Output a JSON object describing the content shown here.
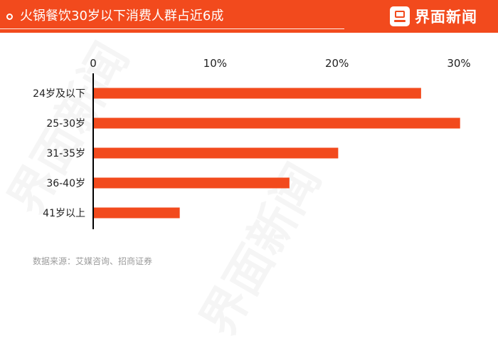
{
  "header": {
    "title": "火锅餐饮30岁以下消费人群占近6成",
    "brand_name": "界面新闻",
    "brand_logo_icon": "jiemian-logo-icon"
  },
  "colors": {
    "accent": "#f24a1d",
    "bar": "#f24a1d",
    "axis": "#000000",
    "source_text": "#9b9b9b"
  },
  "chart_data": {
    "type": "bar",
    "orientation": "horizontal",
    "title": "火锅餐饮30岁以下消费人群占近6成",
    "categories": [
      "24岁及以下",
      "25-30岁",
      "31-35岁",
      "36-40岁",
      "41岁以上"
    ],
    "values": [
      26.9,
      30.1,
      20.1,
      16.1,
      7.1
    ],
    "unit": "%",
    "xlim": [
      0,
      30
    ],
    "xticks": [
      {
        "value": 0,
        "label": "0"
      },
      {
        "value": 10,
        "label": "10%"
      },
      {
        "value": 20,
        "label": "20%"
      },
      {
        "value": 30,
        "label": "30%"
      }
    ],
    "grid": false,
    "legend": "none"
  },
  "source_text": "数据来源：艾媒咨询、招商证券"
}
